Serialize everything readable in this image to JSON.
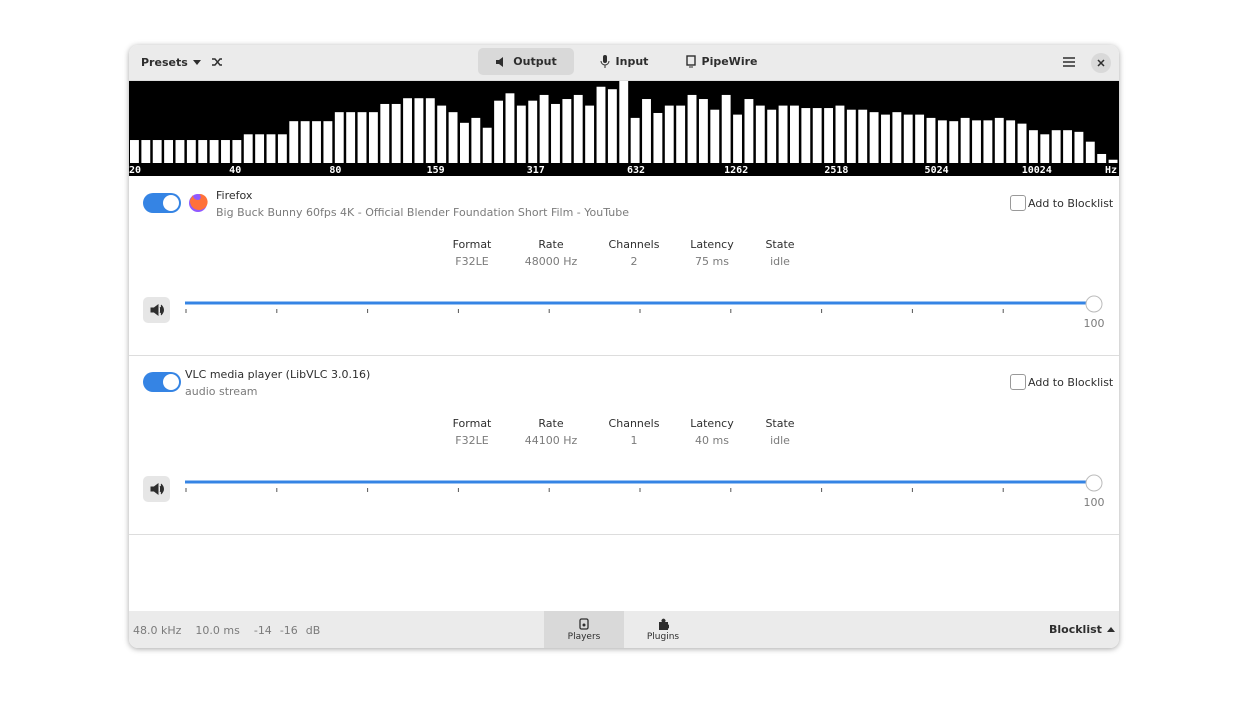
{
  "header": {
    "presets": "Presets",
    "tabs": [
      "Output",
      "Input",
      "PipeWire"
    ]
  },
  "spectrum": {
    "labels": [
      "20",
      "40",
      "80",
      "159",
      "317",
      "632",
      "1262",
      "2518",
      "5024",
      "10024"
    ],
    "unit": "Hz",
    "levels": [
      28,
      28,
      28,
      28,
      28,
      28,
      28,
      28,
      28,
      28,
      35,
      35,
      35,
      35,
      51,
      51,
      51,
      51,
      62,
      62,
      62,
      62,
      72,
      72,
      79,
      79,
      79,
      70,
      62,
      49,
      55,
      43,
      76,
      85,
      70,
      76,
      83,
      72,
      78,
      83,
      70,
      93,
      90,
      100,
      55,
      78,
      61,
      70,
      70,
      83,
      78,
      65,
      83,
      59,
      78,
      70,
      65,
      70,
      70,
      67,
      67,
      67,
      70,
      65,
      65,
      62,
      59,
      62,
      59,
      59,
      55,
      52,
      51,
      55,
      52,
      52,
      55,
      52,
      48,
      40,
      35,
      40,
      40,
      38,
      26,
      11,
      4
    ]
  },
  "columns": [
    "Format",
    "Rate",
    "Channels",
    "Latency",
    "State"
  ],
  "blocklist_label": "Add to Blocklist",
  "streams": [
    {
      "name": "Firefox",
      "description": "Big Buck Bunny 60fps 4K - Official Blender Foundation Short Film - YouTube",
      "values": [
        "F32LE",
        "48000 Hz",
        "2",
        "75 ms",
        "idle"
      ],
      "volume": "100"
    },
    {
      "name": "VLC media player (LibVLC 3.0.16)",
      "description": "audio stream",
      "values": [
        "F32LE",
        "44100 Hz",
        "1",
        "40 ms",
        "idle"
      ],
      "volume": "100"
    }
  ],
  "status": [
    "48.0 kHz",
    "10.0 ms",
    "-14",
    "-16",
    "dB"
  ],
  "footer_tabs": [
    "Players",
    "Plugins"
  ],
  "blocklist_button": "Blocklist"
}
